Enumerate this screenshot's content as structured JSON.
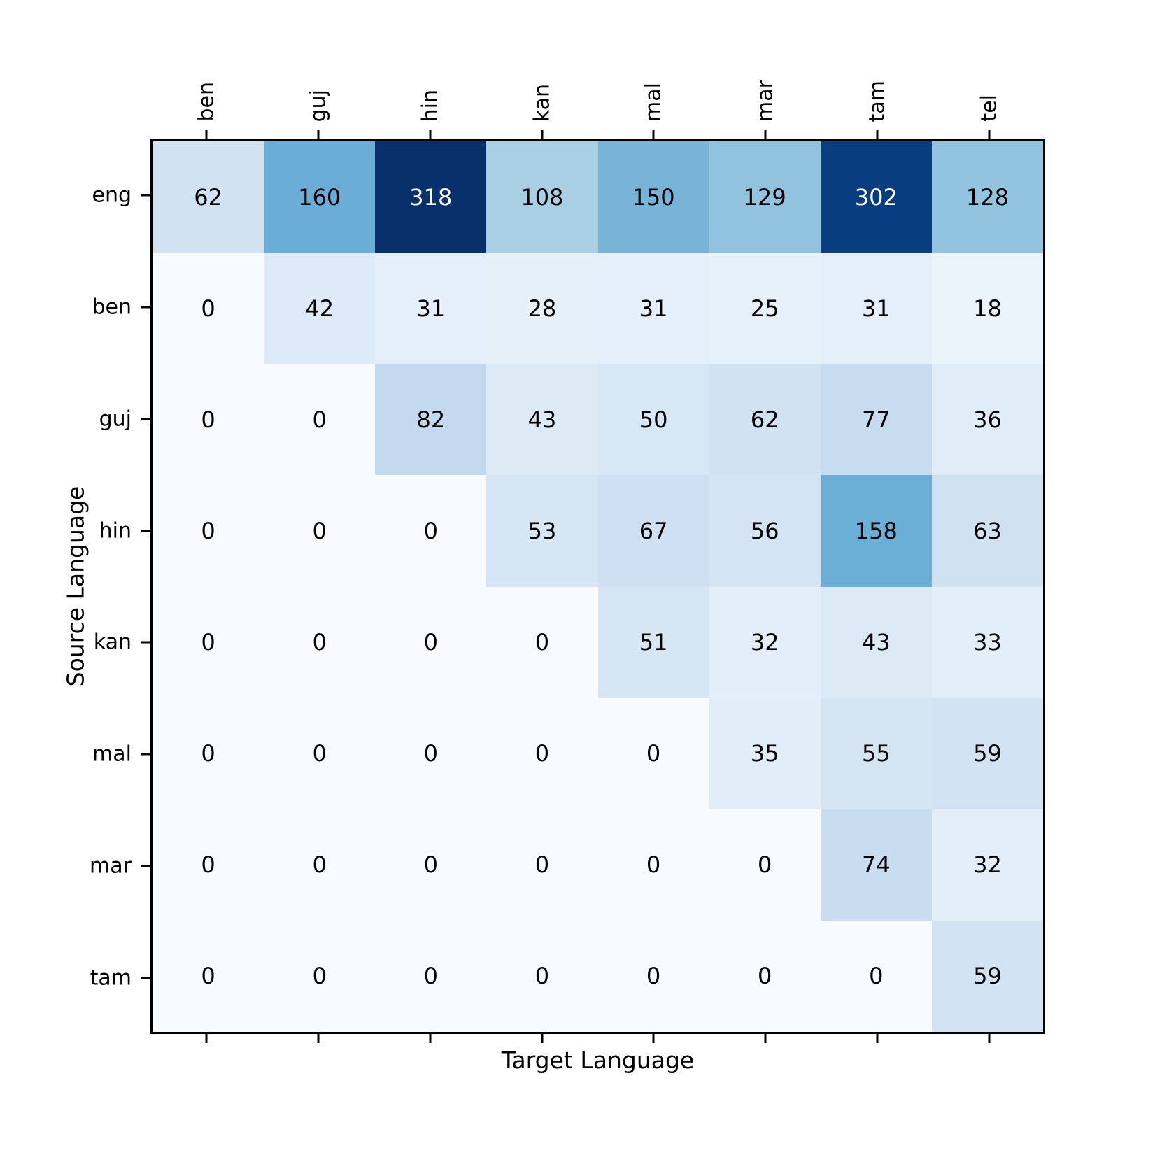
{
  "figure": {
    "background": "#ffffff",
    "axis_color": "#000000"
  },
  "chart_data": {
    "type": "heatmap",
    "title": "",
    "xlabel": "Target Language",
    "ylabel": "Source Language",
    "x_categories": [
      "ben",
      "guj",
      "hin",
      "kan",
      "mal",
      "mar",
      "tam",
      "tel"
    ],
    "y_categories": [
      "eng",
      "ben",
      "guj",
      "hin",
      "kan",
      "mal",
      "mar",
      "tam"
    ],
    "values": [
      [
        62,
        160,
        318,
        108,
        150,
        129,
        302,
        128
      ],
      [
        0,
        42,
        31,
        28,
        31,
        25,
        31,
        18
      ],
      [
        0,
        0,
        82,
        43,
        50,
        62,
        77,
        36
      ],
      [
        0,
        0,
        0,
        53,
        67,
        56,
        158,
        63
      ],
      [
        0,
        0,
        0,
        0,
        51,
        32,
        43,
        33
      ],
      [
        0,
        0,
        0,
        0,
        0,
        35,
        55,
        59
      ],
      [
        0,
        0,
        0,
        0,
        0,
        0,
        74,
        32
      ],
      [
        0,
        0,
        0,
        0,
        0,
        0,
        0,
        59
      ]
    ],
    "vmin": 0,
    "vmax": 318,
    "colormap": "Blues",
    "colormap_stops": [
      [
        0.0,
        "#f7fbff"
      ],
      [
        0.125,
        "#deebf7"
      ],
      [
        0.25,
        "#c6dbef"
      ],
      [
        0.375,
        "#9ecae1"
      ],
      [
        0.5,
        "#6baed6"
      ],
      [
        0.625,
        "#4292c6"
      ],
      [
        0.75,
        "#2171b5"
      ],
      [
        0.875,
        "#08519c"
      ],
      [
        1.0,
        "#08306b"
      ]
    ],
    "cell_text_color_light_bg": "#000000",
    "cell_text_color_dark_bg": "#ffffff",
    "white_text_threshold": 200,
    "grid": "off",
    "legend": "none"
  }
}
